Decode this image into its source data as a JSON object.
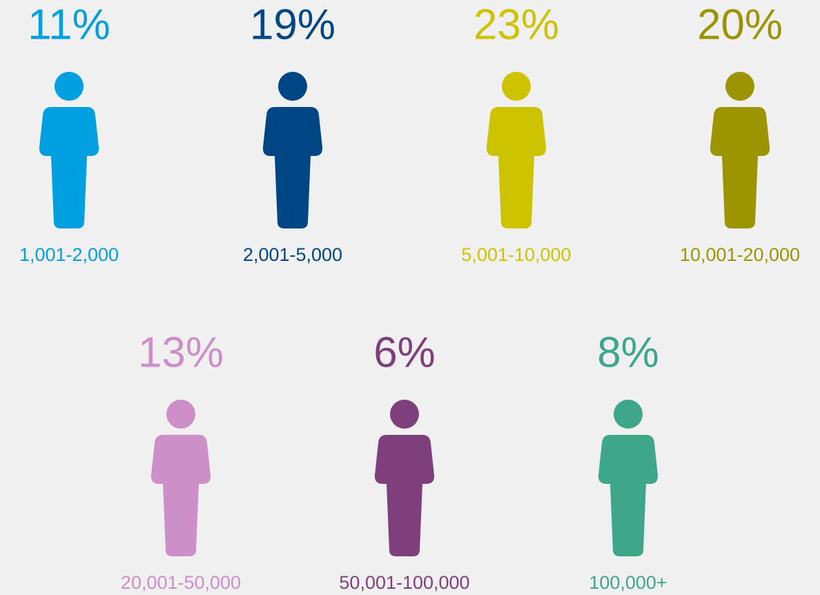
{
  "items": [
    {
      "percent": "11%",
      "range": "1,001-2,000",
      "color": "#009fdf"
    },
    {
      "percent": "19%",
      "range": "2,001-5,000",
      "color": "#004685"
    },
    {
      "percent": "23%",
      "range": "5,001-10,000",
      "color": "#cdc300"
    },
    {
      "percent": "20%",
      "range": "10,001-20,000",
      "color": "#9c9400"
    },
    {
      "percent": "13%",
      "range": "20,001-50,000",
      "color": "#cd8fc8"
    },
    {
      "percent": "6%",
      "range": "50,001-100,000",
      "color": "#7f3f7d"
    },
    {
      "percent": "8%",
      "range": "100,000+",
      "color": "#3ea789"
    }
  ]
}
